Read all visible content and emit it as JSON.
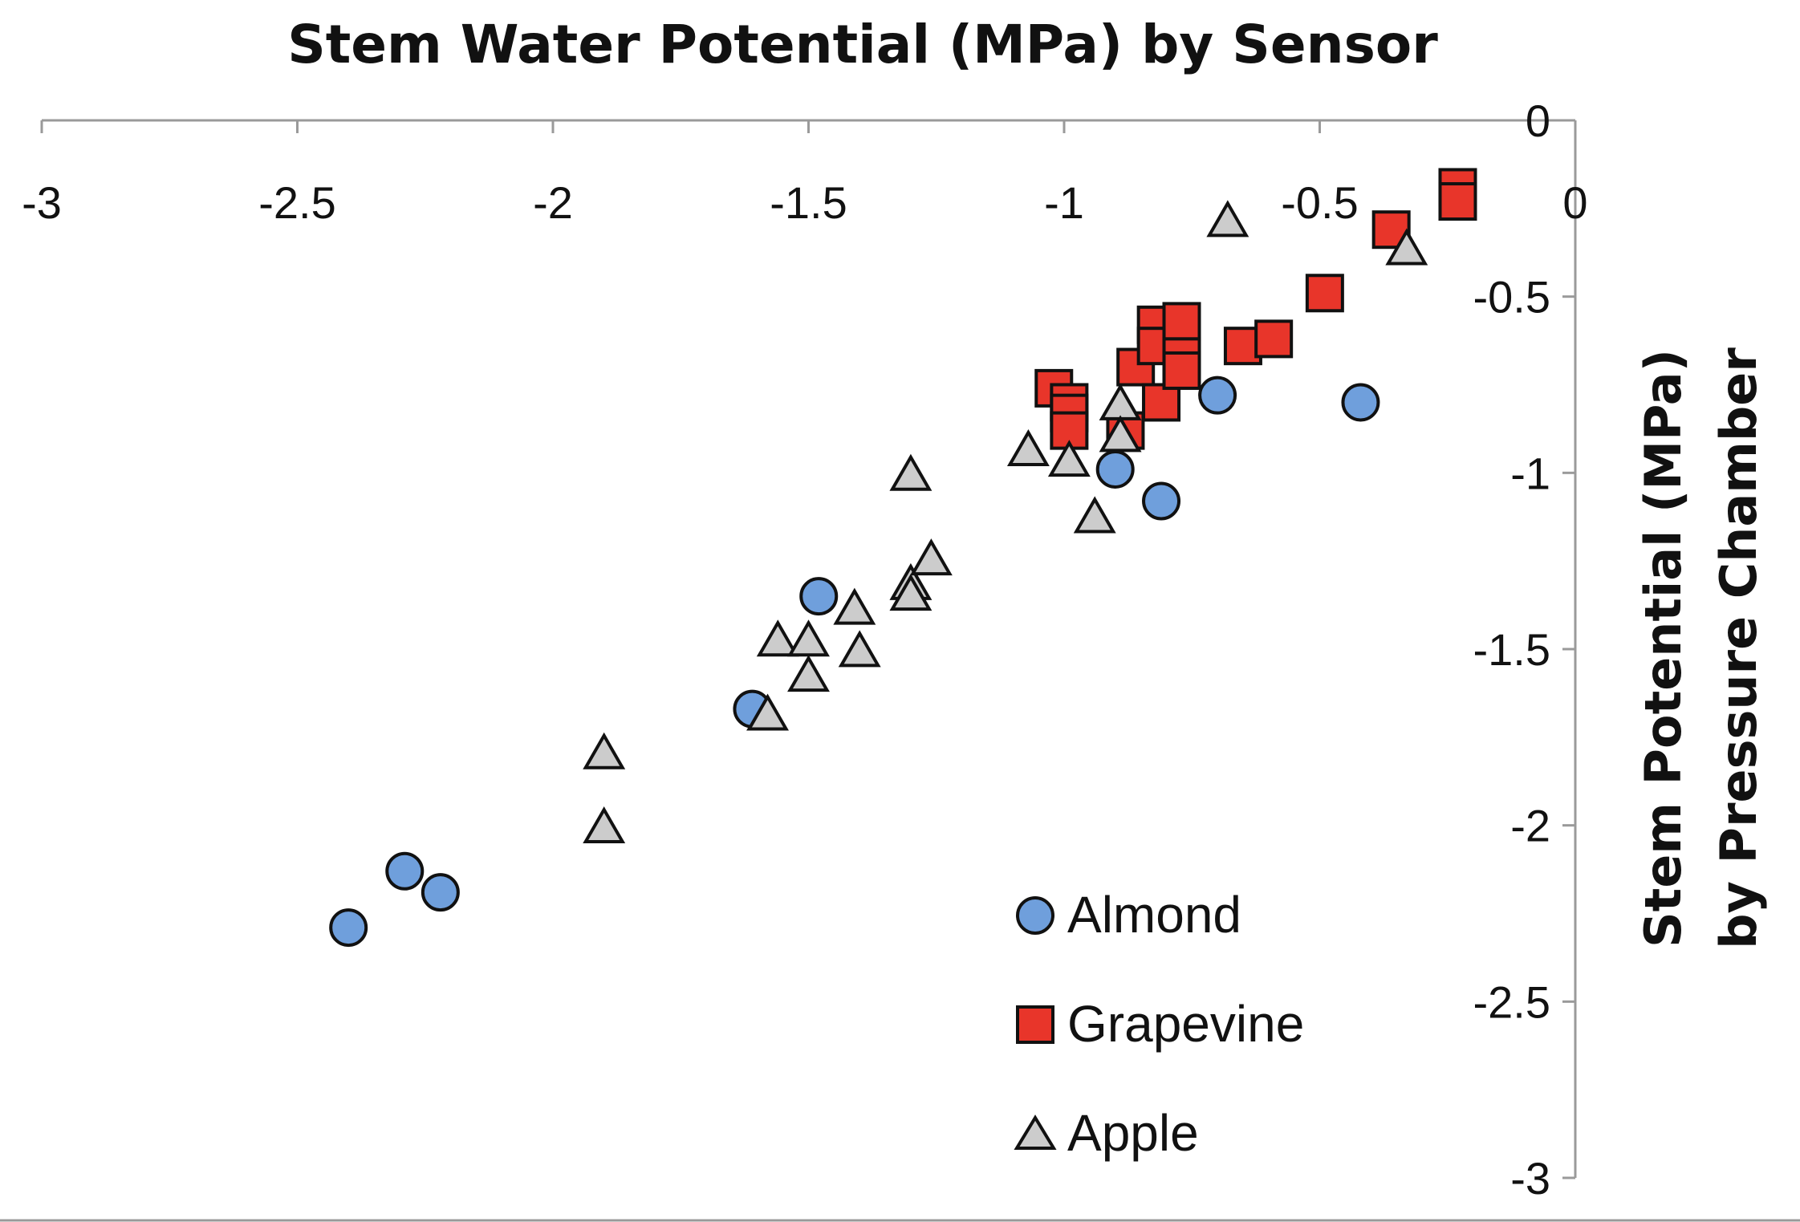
{
  "chart_data": {
    "type": "scatter",
    "title": "Stem Water Potential (MPa) by Sensor",
    "xlabel": "",
    "ylabel_lines": [
      "Stem Potential (MPa)",
      "by Pressure Chamber"
    ],
    "xlim": [
      -3,
      0
    ],
    "ylim": [
      -3,
      0
    ],
    "x_ticks": [
      -3,
      -2.5,
      -2,
      -1.5,
      -1,
      -0.5,
      0
    ],
    "x_tick_labels": [
      "-3",
      "-2.5",
      "-2",
      "-1.5",
      "-1",
      "-0.5",
      "0"
    ],
    "y_ticks": [
      0,
      -0.5,
      -1,
      -1.5,
      -2,
      -2.5,
      -3
    ],
    "y_tick_labels": [
      "0",
      "-0.5",
      "-1",
      "-1.5",
      "-2",
      "-2.5",
      "-3"
    ],
    "grid": false,
    "legend_position": "bottom-right",
    "series": [
      {
        "name": "Almond",
        "marker": "circle",
        "color": "#6f9fdc",
        "points": [
          [
            -2.4,
            -2.29
          ],
          [
            -2.29,
            -2.13
          ],
          [
            -2.22,
            -2.19
          ],
          [
            -1.61,
            -1.67
          ],
          [
            -1.48,
            -1.35
          ],
          [
            -0.9,
            -0.99
          ],
          [
            -0.81,
            -1.08
          ],
          [
            -0.7,
            -0.78
          ],
          [
            -0.42,
            -0.8
          ]
        ]
      },
      {
        "name": "Grapevine",
        "marker": "square",
        "color": "#e8352a",
        "points": [
          [
            -1.02,
            -0.76
          ],
          [
            -0.99,
            -0.8
          ],
          [
            -0.99,
            -0.83
          ],
          [
            -0.99,
            -0.88
          ],
          [
            -0.88,
            -0.88
          ],
          [
            -0.86,
            -0.7
          ],
          [
            -0.82,
            -0.58
          ],
          [
            -0.82,
            -0.64
          ],
          [
            -0.81,
            -0.8
          ],
          [
            -0.77,
            -0.57
          ],
          [
            -0.77,
            -0.67
          ],
          [
            -0.77,
            -0.71
          ],
          [
            -0.65,
            -0.64
          ],
          [
            -0.59,
            -0.62
          ],
          [
            -0.49,
            -0.49
          ],
          [
            -0.36,
            -0.31
          ],
          [
            -0.23,
            -0.19
          ],
          [
            -0.23,
            -0.23
          ]
        ]
      },
      {
        "name": "Apple",
        "marker": "triangle",
        "color": "#cccccc",
        "points": [
          [
            -1.9,
            -1.8
          ],
          [
            -1.9,
            -2.01
          ],
          [
            -1.58,
            -1.69
          ],
          [
            -1.56,
            -1.48
          ],
          [
            -1.5,
            -1.58
          ],
          [
            -1.5,
            -1.48
          ],
          [
            -1.41,
            -1.39
          ],
          [
            -1.4,
            -1.51
          ],
          [
            -1.3,
            -1.01
          ],
          [
            -1.3,
            -1.32
          ],
          [
            -1.3,
            -1.35
          ],
          [
            -1.26,
            -1.25
          ],
          [
            -1.07,
            -0.94
          ],
          [
            -0.99,
            -0.97
          ],
          [
            -0.94,
            -1.13
          ],
          [
            -0.89,
            -0.81
          ],
          [
            -0.89,
            -0.9
          ],
          [
            -0.68,
            -0.29
          ],
          [
            -0.33,
            -0.37
          ]
        ]
      }
    ]
  }
}
